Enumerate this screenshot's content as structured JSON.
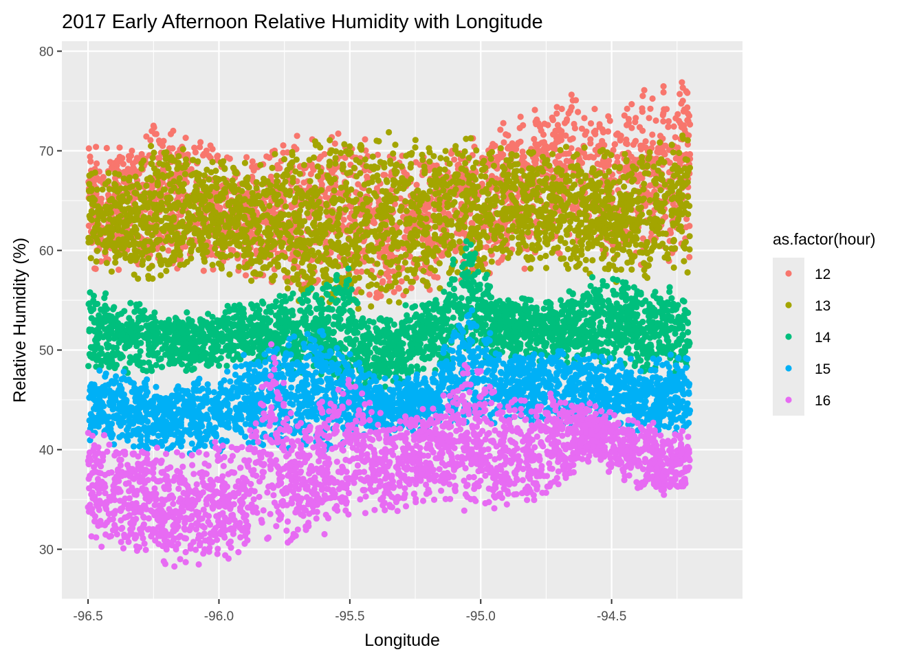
{
  "chart_data": {
    "type": "scatter",
    "title": "2017 Early Afternoon Relative Humidity with Longitude",
    "xlabel": "Longitude",
    "ylabel": "Relative Humidity (%)",
    "xlim": [
      -96.6,
      -94.0
    ],
    "ylim": [
      25.0,
      81.0
    ],
    "x_ticks": [
      -96.5,
      -96.0,
      -95.5,
      -95.0,
      -94.5
    ],
    "x_tick_labels": [
      "-96.5",
      "-96.0",
      "-95.5",
      "-95.0",
      "-94.5"
    ],
    "y_ticks": [
      30,
      40,
      50,
      60,
      70,
      80
    ],
    "y_tick_labels": [
      "30",
      "40",
      "50",
      "60",
      "70",
      "80"
    ],
    "grid": true,
    "panel_background": "#ebebeb",
    "grid_color": "#ffffff",
    "legend": {
      "title": "as.factor(hour)",
      "position": "right"
    },
    "series": [
      {
        "name": "12",
        "color": "#F8766D",
        "x": [
          -96.5,
          -96.3,
          -96.25,
          -96.1,
          -95.9,
          -95.7,
          -95.6,
          -95.4,
          -95.2,
          -95.0,
          -94.8,
          -94.65,
          -94.5,
          -94.35,
          -94.2
        ],
        "upper": [
          70.8,
          72.0,
          73.8,
          71.5,
          69.5,
          72.5,
          73.0,
          71.0,
          70.5,
          72.5,
          75.5,
          76.5,
          74.0,
          77.0,
          79.0
        ],
        "lower": [
          58.0,
          57.5,
          57.5,
          58.0,
          57.0,
          55.0,
          55.0,
          54.5,
          55.0,
          57.0,
          58.0,
          58.5,
          58.5,
          58.0,
          58.0
        ]
      },
      {
        "name": "13",
        "color": "#A3A500",
        "x": [
          -96.5,
          -96.3,
          -96.25,
          -96.1,
          -95.9,
          -95.7,
          -95.55,
          -95.4,
          -95.2,
          -95.05,
          -94.9,
          -94.6,
          -94.45,
          -94.3,
          -94.2
        ],
        "upper": [
          68.5,
          69.5,
          71.5,
          70.0,
          69.5,
          71.0,
          71.5,
          72.0,
          72.5,
          72.5,
          70.5,
          71.0,
          70.5,
          71.5,
          73.0
        ],
        "lower": [
          59.0,
          56.0,
          56.5,
          58.0,
          57.0,
          53.5,
          54.0,
          53.5,
          54.0,
          56.0,
          58.0,
          57.0,
          56.5,
          56.0,
          57.5
        ]
      },
      {
        "name": "14",
        "color": "#00BF7D",
        "x": [
          -96.5,
          -96.35,
          -96.2,
          -96.0,
          -95.8,
          -95.6,
          -95.52,
          -95.45,
          -95.3,
          -95.15,
          -95.05,
          -94.95,
          -94.7,
          -94.5,
          -94.3,
          -94.2
        ],
        "upper": [
          56.0,
          55.5,
          53.5,
          54.5,
          55.5,
          57.0,
          60.0,
          54.0,
          54.5,
          56.0,
          63.0,
          56.0,
          55.5,
          58.5,
          56.5,
          56.5
        ],
        "lower": [
          47.5,
          47.5,
          47.5,
          48.0,
          48.0,
          47.0,
          46.0,
          45.5,
          46.5,
          48.0,
          48.5,
          49.0,
          48.5,
          48.0,
          47.5,
          47.5
        ]
      },
      {
        "name": "15",
        "color": "#00B0F6",
        "x": [
          -96.5,
          -96.35,
          -96.2,
          -96.0,
          -95.8,
          -95.6,
          -95.5,
          -95.4,
          -95.2,
          -95.05,
          -94.9,
          -94.6,
          -94.4,
          -94.2
        ],
        "upper": [
          48.5,
          48.0,
          47.0,
          48.0,
          51.5,
          53.0,
          50.0,
          47.5,
          48.0,
          55.5,
          50.0,
          50.5,
          49.0,
          50.0
        ],
        "lower": [
          40.5,
          40.0,
          39.0,
          39.5,
          39.5,
          39.0,
          40.0,
          41.0,
          41.5,
          42.0,
          42.5,
          42.0,
          41.5,
          41.0
        ]
      },
      {
        "name": "16",
        "color": "#E76BF3",
        "x": [
          -96.5,
          -96.35,
          -96.2,
          -96.1,
          -96.0,
          -95.9,
          -95.8,
          -95.7,
          -95.5,
          -95.35,
          -95.2,
          -95.05,
          -94.9,
          -94.75,
          -94.6,
          -94.45,
          -94.3,
          -94.2
        ],
        "upper": [
          43.5,
          41.0,
          40.5,
          40.5,
          41.0,
          41.5,
          52.0,
          43.0,
          48.5,
          44.0,
          44.5,
          50.0,
          45.5,
          46.5,
          45.0,
          44.0,
          42.5,
          42.0
        ],
        "lower": [
          30.5,
          29.0,
          28.0,
          27.5,
          28.5,
          29.5,
          30.0,
          30.5,
          31.5,
          33.0,
          34.5,
          33.5,
          33.0,
          34.0,
          38.5,
          36.5,
          35.0,
          36.0
        ]
      }
    ]
  }
}
